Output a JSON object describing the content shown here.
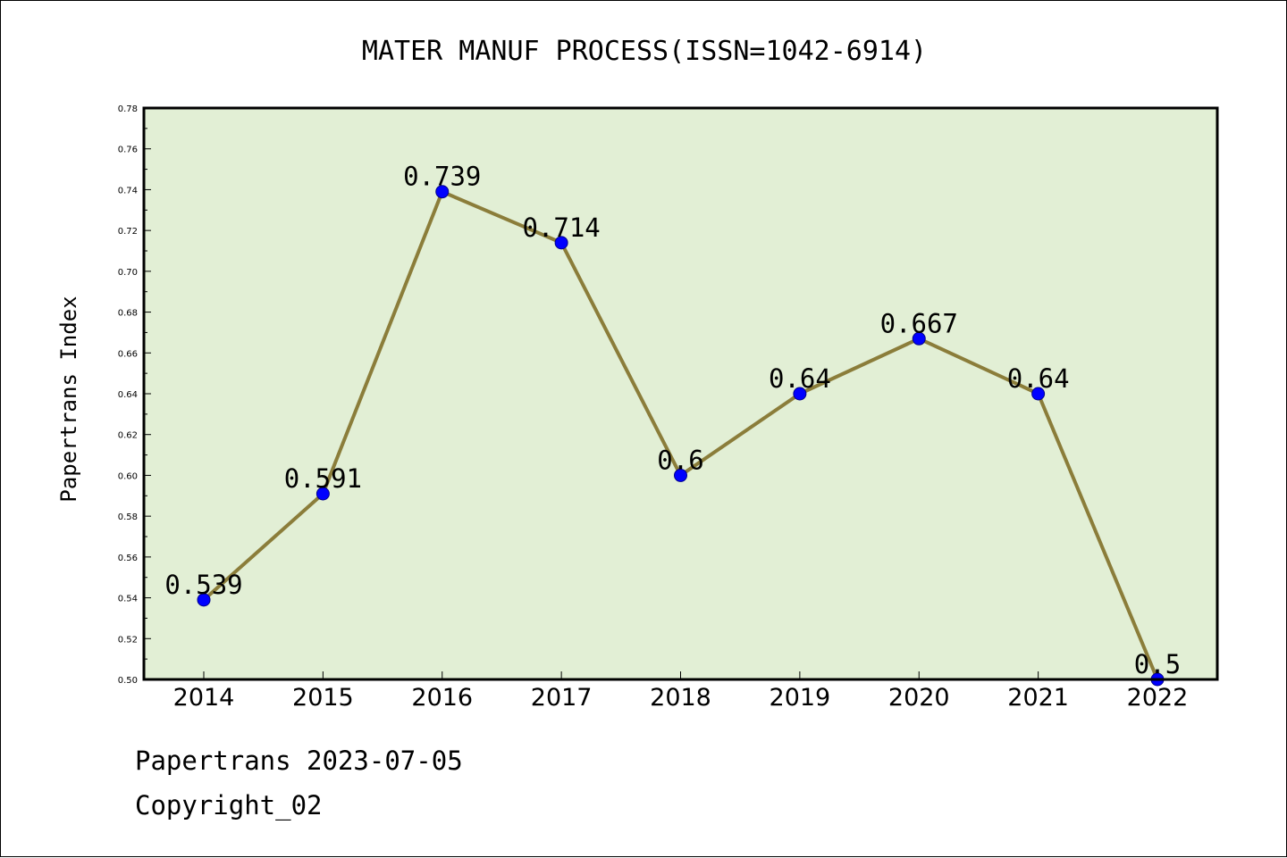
{
  "chart_data": {
    "type": "line",
    "title": "MATER MANUF PROCESS(ISSN=1042-6914)",
    "xlabel": "",
    "ylabel": "Papertrans Index",
    "categories": [
      "2014",
      "2015",
      "2016",
      "2017",
      "2018",
      "2019",
      "2020",
      "2021",
      "2022"
    ],
    "values": [
      0.539,
      0.591,
      0.739,
      0.714,
      0.6,
      0.64,
      0.667,
      0.64,
      0.5
    ],
    "data_labels": [
      "0.539",
      "0.591",
      "0.739",
      "0.714",
      "0.6",
      "0.64",
      "0.667",
      "0.64",
      "0.5"
    ],
    "ylim": [
      0.5,
      0.78
    ],
    "yticks": [
      "0.50",
      "0.52",
      "0.54",
      "0.56",
      "0.58",
      "0.60",
      "0.62",
      "0.64",
      "0.66",
      "0.68",
      "0.70",
      "0.72",
      "0.74",
      "0.76",
      "0.78"
    ],
    "grid": false,
    "legend": "none",
    "colors": {
      "plot_background": "#e2efd5",
      "line": "#8b7d3a",
      "marker": "#0000ff",
      "marker_edge": "#00008b",
      "axis": "#000000"
    }
  },
  "footer": {
    "date_text": "Papertrans 2023-07-05",
    "copyright_text": "Copyright_02"
  }
}
